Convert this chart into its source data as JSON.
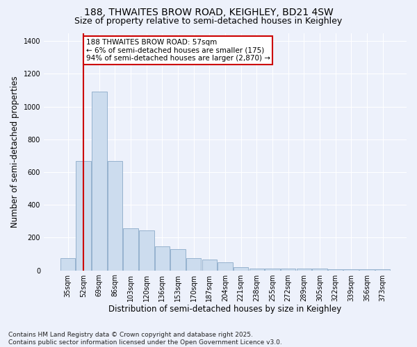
{
  "title_line1": "188, THWAITES BROW ROAD, KEIGHLEY, BD21 4SW",
  "title_line2": "Size of property relative to semi-detached houses in Keighley",
  "xlabel": "Distribution of semi-detached houses by size in Keighley",
  "ylabel": "Number of semi-detached properties",
  "categories": [
    "35sqm",
    "52sqm",
    "69sqm",
    "86sqm",
    "103sqm",
    "120sqm",
    "136sqm",
    "153sqm",
    "170sqm",
    "187sqm",
    "204sqm",
    "221sqm",
    "238sqm",
    "255sqm",
    "272sqm",
    "289sqm",
    "305sqm",
    "322sqm",
    "339sqm",
    "356sqm",
    "373sqm"
  ],
  "values": [
    75,
    670,
    1090,
    670,
    255,
    245,
    148,
    130,
    75,
    65,
    50,
    20,
    12,
    10,
    10,
    10,
    10,
    5,
    5,
    5,
    5
  ],
  "bar_color": "#ccdcee",
  "bar_edge_color": "#8aaac8",
  "vline_x": 1,
  "vline_color": "#cc0000",
  "annotation_text": "188 THWAITES BROW ROAD: 57sqm\n← 6% of semi-detached houses are smaller (175)\n94% of semi-detached houses are larger (2,870) →",
  "annotation_box_facecolor": "#ffffff",
  "annotation_box_edgecolor": "#cc0000",
  "footer_text": "Contains HM Land Registry data © Crown copyright and database right 2025.\nContains public sector information licensed under the Open Government Licence v3.0.",
  "ylim": [
    0,
    1450
  ],
  "background_color": "#edf1fb",
  "grid_color": "#ffffff",
  "title_fontsize": 10,
  "subtitle_fontsize": 9,
  "axis_label_fontsize": 8.5,
  "tick_fontsize": 7,
  "annotation_fontsize": 7.5,
  "footer_fontsize": 6.5,
  "yticks": [
    0,
    200,
    400,
    600,
    800,
    1000,
    1200,
    1400
  ]
}
